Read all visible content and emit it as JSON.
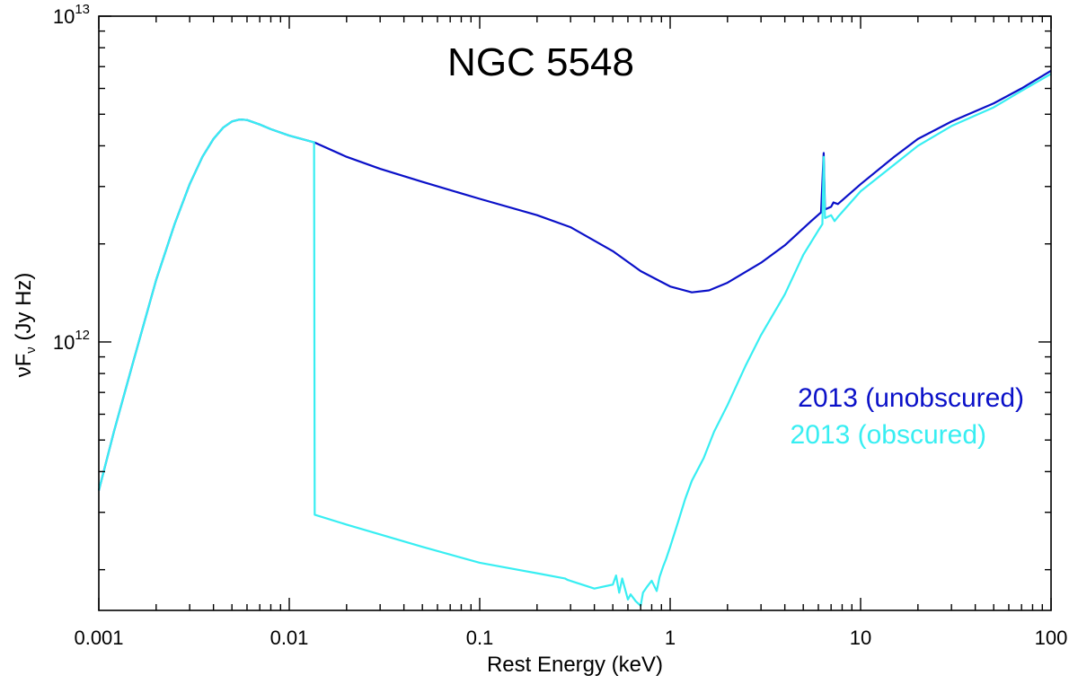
{
  "chart_data": {
    "type": "line",
    "title": "NGC 5548",
    "xlabel": "Rest Energy (keV)",
    "ylabel": "νFν (Jy Hz)",
    "ylabel_parts": {
      "main": "νF",
      "sub": "ν",
      "units": " (Jy Hz)"
    },
    "xscale": "log",
    "yscale": "log",
    "xlim": [
      0.001,
      100
    ],
    "ylim": [
      150000000000.0,
      10000000000000.0
    ],
    "x_ticks": [
      {
        "value": 0.001,
        "label": "0.001"
      },
      {
        "value": 0.01,
        "label": "0.01"
      },
      {
        "value": 0.1,
        "label": "0.1"
      },
      {
        "value": 1,
        "label": "1"
      },
      {
        "value": 10,
        "label": "10"
      },
      {
        "value": 100,
        "label": "100"
      }
    ],
    "y_ticks": [
      {
        "value": 1000000000000.0,
        "base": "10",
        "exp": "12"
      },
      {
        "value": 10000000000000.0,
        "base": "10",
        "exp": "13"
      }
    ],
    "grid": false,
    "legend_position": "right-middle",
    "series": [
      {
        "name": "2013 (unobscured)",
        "color": "#0a10c8",
        "points": [
          [
            0.001,
            350000000000.0
          ],
          [
            0.0012,
            530000000000.0
          ],
          [
            0.0015,
            850000000000.0
          ],
          [
            0.002,
            1550000000000.0
          ],
          [
            0.0025,
            2300000000000.0
          ],
          [
            0.003,
            3050000000000.0
          ],
          [
            0.0035,
            3700000000000.0
          ],
          [
            0.004,
            4200000000000.0
          ],
          [
            0.0045,
            4550000000000.0
          ],
          [
            0.005,
            4750000000000.0
          ],
          [
            0.0055,
            4820000000000.0
          ],
          [
            0.006,
            4800000000000.0
          ],
          [
            0.007,
            4650000000000.0
          ],
          [
            0.008,
            4500000000000.0
          ],
          [
            0.01,
            4300000000000.0
          ],
          [
            0.0135,
            4100000000000.0
          ],
          [
            0.02,
            3700000000000.0
          ],
          [
            0.03,
            3400000000000.0
          ],
          [
            0.05,
            3100000000000.0
          ],
          [
            0.1,
            2750000000000.0
          ],
          [
            0.2,
            2450000000000.0
          ],
          [
            0.3,
            2250000000000.0
          ],
          [
            0.5,
            1900000000000.0
          ],
          [
            0.7,
            1650000000000.0
          ],
          [
            1.0,
            1480000000000.0
          ],
          [
            1.3,
            1420000000000.0
          ],
          [
            1.6,
            1440000000000.0
          ],
          [
            2.0,
            1520000000000.0
          ],
          [
            3.0,
            1750000000000.0
          ],
          [
            4.0,
            1980000000000.0
          ],
          [
            5.5,
            2350000000000.0
          ],
          [
            6.2,
            2500000000000.0
          ],
          [
            6.4,
            3800000000000.0
          ],
          [
            6.5,
            2550000000000.0
          ],
          [
            7.0,
            2600000000000.0
          ],
          [
            7.2,
            2680000000000.0
          ],
          [
            7.6,
            2650000000000.0
          ],
          [
            10.0,
            3050000000000.0
          ],
          [
            15.0,
            3700000000000.0
          ],
          [
            20.0,
            4200000000000.0
          ],
          [
            30.0,
            4750000000000.0
          ],
          [
            50.0,
            5400000000000.0
          ],
          [
            70.0,
            6000000000000.0
          ],
          [
            100.0,
            6800000000000.0
          ]
        ]
      },
      {
        "name": "2013 (obscured)",
        "color": "#38eef2",
        "points": [
          [
            0.001,
            350000000000.0
          ],
          [
            0.0012,
            530000000000.0
          ],
          [
            0.0015,
            850000000000.0
          ],
          [
            0.002,
            1550000000000.0
          ],
          [
            0.0025,
            2300000000000.0
          ],
          [
            0.003,
            3050000000000.0
          ],
          [
            0.0035,
            3700000000000.0
          ],
          [
            0.004,
            4200000000000.0
          ],
          [
            0.0045,
            4550000000000.0
          ],
          [
            0.005,
            4750000000000.0
          ],
          [
            0.0055,
            4820000000000.0
          ],
          [
            0.006,
            4800000000000.0
          ],
          [
            0.007,
            4650000000000.0
          ],
          [
            0.008,
            4500000000000.0
          ],
          [
            0.01,
            4300000000000.0
          ],
          [
            0.0135,
            4100000000000.0
          ],
          [
            0.0136,
            295000000000.0
          ],
          [
            0.02,
            275000000000.0
          ],
          [
            0.05,
            235000000000.0
          ],
          [
            0.1,
            210000000000.0
          ],
          [
            0.2,
            195000000000.0
          ],
          [
            0.28,
            188000000000.0
          ],
          [
            0.29,
            186000000000.0
          ],
          [
            0.4,
            175000000000.0
          ],
          [
            0.5,
            180000000000.0
          ],
          [
            0.52,
            192000000000.0
          ],
          [
            0.54,
            170000000000.0
          ],
          [
            0.56,
            188000000000.0
          ],
          [
            0.6,
            162000000000.0
          ],
          [
            0.62,
            168000000000.0
          ],
          [
            0.66,
            160000000000.0
          ],
          [
            0.7,
            155000000000.0
          ],
          [
            0.72,
            170000000000.0
          ],
          [
            0.76,
            178000000000.0
          ],
          [
            0.8,
            185000000000.0
          ],
          [
            0.85,
            172000000000.0
          ],
          [
            0.88,
            190000000000.0
          ],
          [
            0.92,
            205000000000.0
          ],
          [
            0.95,
            215000000000.0
          ],
          [
            1.0,
            235000000000.0
          ],
          [
            1.1,
            280000000000.0
          ],
          [
            1.2,
            330000000000.0
          ],
          [
            1.3,
            375000000000.0
          ],
          [
            1.5,
            440000000000.0
          ],
          [
            1.7,
            530000000000.0
          ],
          [
            2.0,
            640000000000.0
          ],
          [
            2.5,
            850000000000.0
          ],
          [
            3.0,
            1050000000000.0
          ],
          [
            4.0,
            1400000000000.0
          ],
          [
            5.0,
            1850000000000.0
          ],
          [
            6.0,
            2200000000000.0
          ],
          [
            6.3,
            2300000000000.0
          ],
          [
            6.4,
            3700000000000.0
          ],
          [
            6.5,
            2400000000000.0
          ],
          [
            7.0,
            2450000000000.0
          ],
          [
            7.3,
            2350000000000.0
          ],
          [
            7.6,
            2420000000000.0
          ],
          [
            10.0,
            2900000000000.0
          ],
          [
            15.0,
            3500000000000.0
          ],
          [
            20.0,
            4000000000000.0
          ],
          [
            30.0,
            4600000000000.0
          ],
          [
            50.0,
            5250000000000.0
          ],
          [
            70.0,
            5900000000000.0
          ],
          [
            100.0,
            6650000000000.0
          ]
        ]
      }
    ]
  }
}
